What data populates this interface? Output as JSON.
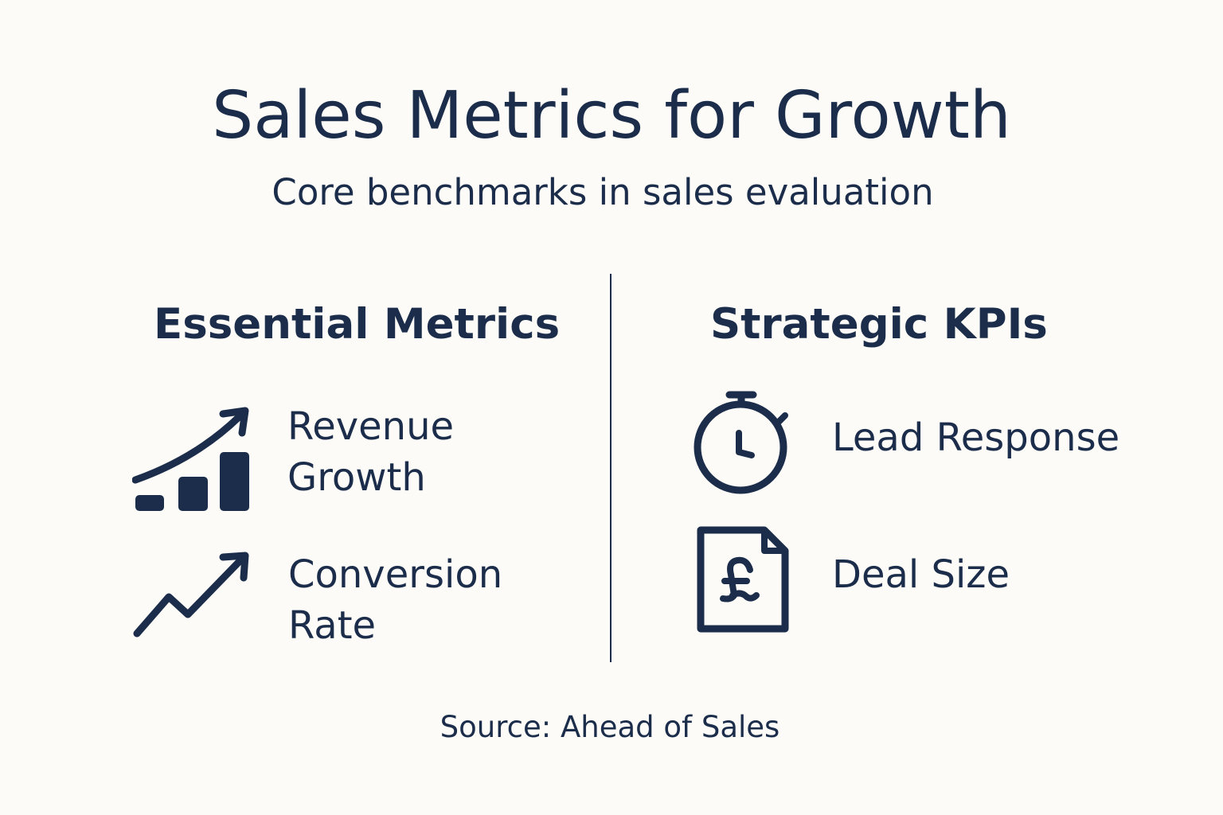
{
  "header": {
    "title": "Sales Metrics for Growth",
    "subtitle": "Core benchmarks in sales evaluation"
  },
  "columns": [
    {
      "heading": "Essential Metrics",
      "items": [
        {
          "icon": "growth-chart-icon",
          "label_lines": [
            "Revenue",
            "Growth"
          ]
        },
        {
          "icon": "trend-up-arrow-icon",
          "label_lines": [
            "Conversion",
            "Rate"
          ]
        }
      ]
    },
    {
      "heading": "Strategic KPIs",
      "items": [
        {
          "icon": "stopwatch-icon",
          "label_lines": [
            "Lead Response"
          ]
        },
        {
          "icon": "pound-document-icon",
          "label_lines": [
            "Deal Size"
          ]
        }
      ]
    }
  ],
  "footer": {
    "source": "Source: Ahead of Sales"
  },
  "colors": {
    "background": "#fcfbf7",
    "ink": "#1b2d4a"
  }
}
